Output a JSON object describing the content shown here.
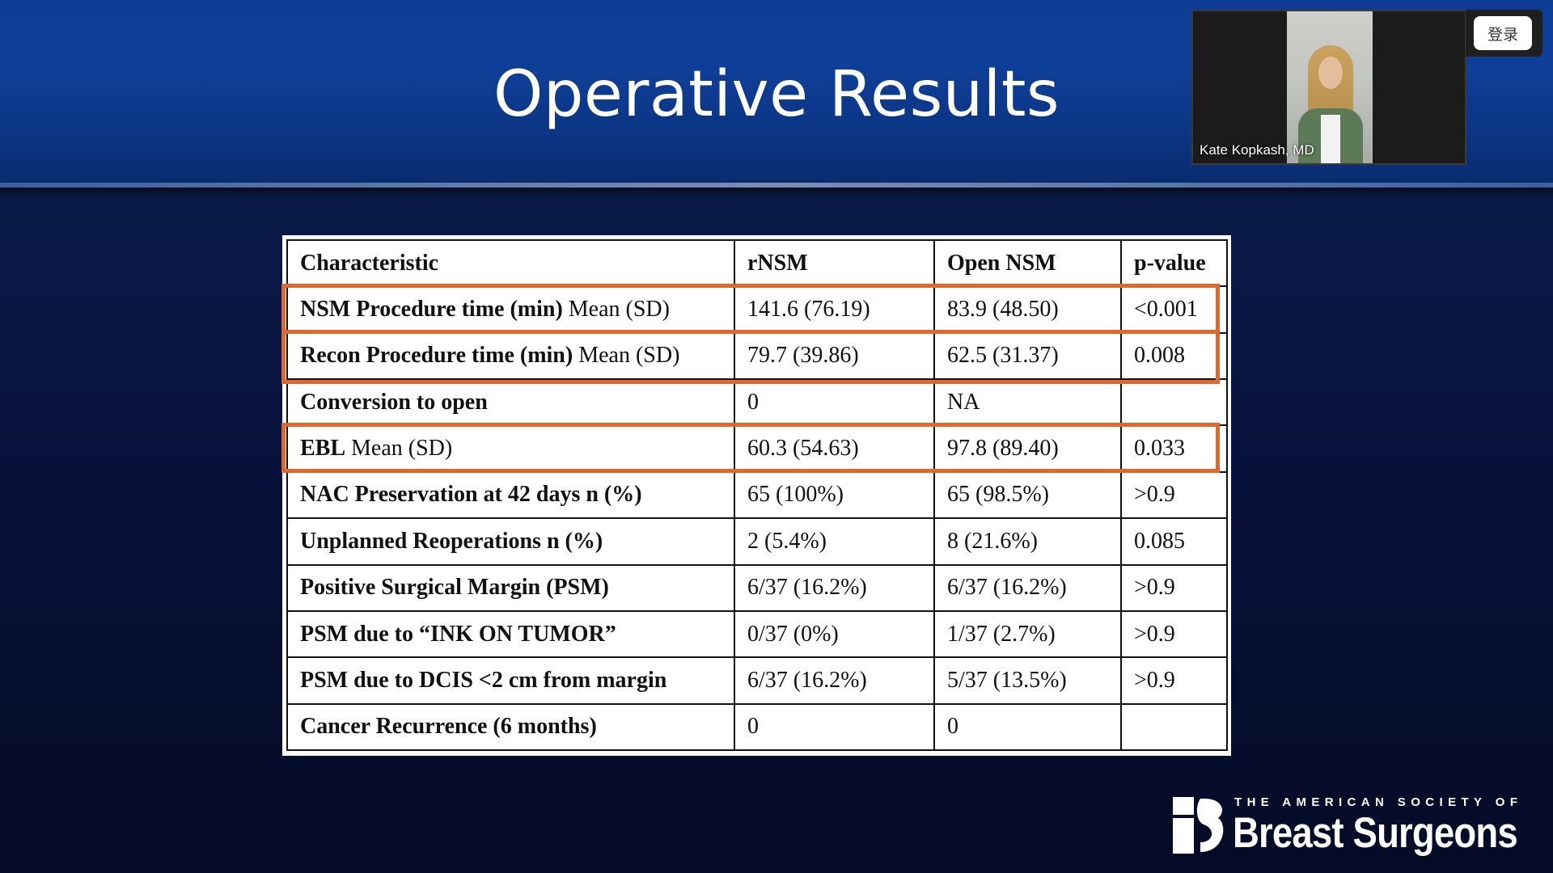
{
  "slide": {
    "title": "Operative Results"
  },
  "video": {
    "participant_name": "Kate Kopkash, MD",
    "login_label": "登录"
  },
  "table": {
    "columns": [
      "Characteristic",
      "rNSM",
      "Open NSM",
      "p-value"
    ],
    "rows": [
      {
        "label_bold": "NSM Procedure time (min)",
        "label_rest": " Mean (SD)",
        "rnsm": "141.6 (76.19)",
        "open": "83.9 (48.50)",
        "p": "<0.001"
      },
      {
        "label_bold": "Recon Procedure time (min)",
        "label_rest": " Mean (SD)",
        "rnsm": "79.7 (39.86)",
        "open": "62.5 (31.37)",
        "p": "0.008"
      },
      {
        "label_bold": "Conversion to open",
        "label_rest": "",
        "rnsm": "0",
        "open": "NA",
        "p": ""
      },
      {
        "label_bold": "EBL",
        "label_rest": " Mean (SD)",
        "rnsm": "60.3 (54.63)",
        "open": "97.8 (89.40)",
        "p": "0.033"
      },
      {
        "label_bold": "NAC Preservation at 42 days n (%)",
        "label_rest": "",
        "rnsm": "65 (100%)",
        "open": "65 (98.5%)",
        "p": ">0.9"
      },
      {
        "label_bold": "Unplanned Reoperations n (%)",
        "label_rest": "",
        "rnsm": "2 (5.4%)",
        "open": "8 (21.6%)",
        "p": "0.085"
      },
      {
        "label_bold": "Positive Surgical Margin (PSM)",
        "label_rest": "",
        "rnsm": "6/37 (16.2%)",
        "open": "6/37 (16.2%)",
        "p": ">0.9"
      },
      {
        "label_bold": "PSM due to “INK ON TUMOR”",
        "label_rest": "",
        "rnsm": "0/37 (0%)",
        "open": "1/37 (2.7%)",
        "p": ">0.9"
      },
      {
        "label_bold": "PSM due to DCIS <2 cm from margin",
        "label_rest": "",
        "rnsm": "6/37 (16.2%)",
        "open": "5/37 (13.5%)",
        "p": ">0.9"
      },
      {
        "label_bold": "Cancer Recurrence (6 months)",
        "label_rest": "",
        "rnsm": "0",
        "open": "0",
        "p": ""
      }
    ],
    "highlight_color": "#e0672d"
  },
  "logo": {
    "tagline": "THE AMERICAN SOCIETY OF",
    "name": "Breast Surgeons"
  }
}
